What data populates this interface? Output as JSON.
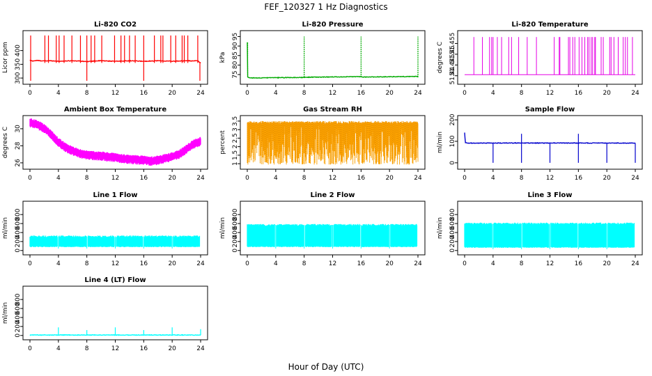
{
  "figure": {
    "title": "FEF_120327  1 Hz Diagnostics",
    "xlabel": "Hour of Day (UTC)"
  },
  "chart_data": [
    {
      "type": "line",
      "title": "Li-820 CO2",
      "ylabel": "Licor ppm",
      "color": "#ff0000",
      "xlim": [
        0,
        24
      ],
      "ylim": [
        285,
        465
      ],
      "yticks": [
        300,
        350,
        400
      ],
      "x": [
        0,
        0.3,
        1,
        2,
        3,
        4,
        5,
        6,
        7,
        8,
        9,
        10,
        11,
        12,
        13,
        14,
        15,
        16,
        17,
        18,
        19,
        20,
        21,
        22,
        23,
        23.5,
        24
      ],
      "y": [
        365,
        362,
        364,
        362,
        363,
        361,
        362,
        363,
        362,
        360,
        362,
        363,
        362,
        361,
        362,
        363,
        362,
        361,
        362,
        363,
        362,
        361,
        362,
        363,
        362,
        364,
        355
      ],
      "spikes_up": [
        0.1,
        2.1,
        2.6,
        3.7,
        4.1,
        4.8,
        5.9,
        7.1,
        8.0,
        8.6,
        9.1,
        10.1,
        11.9,
        12.8,
        13.3,
        14.0,
        14.8,
        16.0,
        17.5,
        18.4,
        18.7,
        19.8,
        20.5,
        21.4,
        21.7,
        22.2,
        23.6
      ],
      "spike_up_to": 455,
      "spikes_down": [
        0.1,
        8.0,
        16.0,
        23.9
      ],
      "spike_down_to": 290
    },
    {
      "type": "line",
      "title": "Li-820 Pressure",
      "ylabel": "kPa",
      "color": "#00aa00",
      "xlim": [
        0,
        24
      ],
      "ylim": [
        71,
        97
      ],
      "yticks": [
        75,
        80,
        85,
        90,
        95
      ],
      "x": [
        0,
        0.05,
        0.15,
        0.4,
        8,
        8.1,
        16,
        16.1,
        24
      ],
      "y": [
        92,
        74,
        73.5,
        73.2,
        73.5,
        73.6,
        73.9,
        73.7,
        74
      ],
      "spikes_up": [
        8,
        16,
        24
      ],
      "spike_up_to": 95
    },
    {
      "type": "line",
      "title": "Li-820 Temperature",
      "ylabel": "degrees C",
      "color": "#e600e6",
      "xlim": [
        0,
        24
      ],
      "ylim": [
        51.437,
        51.46
      ],
      "yticks": [
        51.44,
        51.445,
        51.45,
        51.455
      ],
      "base": 51.4405,
      "spike_up_to": 51.458,
      "spikes_up": [
        1.3,
        2.5,
        3.5,
        3.8,
        4.0,
        4.6,
        5.2,
        6.2,
        6.6,
        7.6,
        8.8,
        10.1,
        12.6,
        13.3,
        13.4,
        14.6,
        14.8,
        15.2,
        15.5,
        16.1,
        16.5,
        16.9,
        17.3,
        17.5,
        17.8,
        18.0,
        18.3,
        18.4,
        19.2,
        19.5,
        20.4,
        20.6,
        21.0,
        21.6,
        22.3,
        22.6,
        22.9,
        23.6
      ]
    },
    {
      "type": "area",
      "title": "Ambient Box Temperature",
      "ylabel": "degrees C",
      "color": "#ff00ff",
      "xlim": [
        0,
        24
      ],
      "ylim": [
        25.5,
        31.3
      ],
      "yticks": [
        26,
        28,
        30
      ],
      "x": [
        0,
        1,
        2,
        3,
        4,
        5,
        6,
        7,
        8,
        10,
        12,
        14,
        16,
        17,
        18,
        19,
        20,
        21,
        22,
        23,
        24
      ],
      "y": [
        30.7,
        30.5,
        30.0,
        29.3,
        28.4,
        27.8,
        27.4,
        27.1,
        26.9,
        26.8,
        26.6,
        26.4,
        26.3,
        26.2,
        26.3,
        26.5,
        26.7,
        27.0,
        27.6,
        28.2,
        28.5
      ]
    },
    {
      "type": "area",
      "title": "Gas Stream RH",
      "ylabel": "percent",
      "color": "#ffa500",
      "xlim": [
        0,
        24
      ],
      "ylim": [
        0.8,
        3.7
      ],
      "yticks": [
        1.0,
        1.5,
        2.0,
        2.5,
        3.0,
        3.5
      ],
      "upper": 3.5,
      "lower_min": 0.95,
      "lower_max": 3.3
    },
    {
      "type": "line",
      "title": "Sample Flow",
      "ylabel": "ml/min",
      "color": "#0000cd",
      "xlim": [
        0,
        24
      ],
      "ylim": [
        -20,
        210
      ],
      "yticks": [
        0,
        100,
        200
      ],
      "x": [
        0,
        0.1,
        0.5,
        24
      ],
      "y": [
        140,
        95,
        92,
        92
      ],
      "spikes_up": [
        8,
        16
      ],
      "spike_up_to": 135,
      "spikes_down": [
        4,
        8,
        12,
        16,
        20,
        24
      ],
      "spike_down_to": 0
    },
    {
      "type": "area",
      "title": "Line 1 Flow",
      "ylabel": "ml/min",
      "color": "#00ffff",
      "xlim": [
        0,
        24
      ],
      "ylim": [
        -50,
        1050
      ],
      "yticks": [
        0,
        200,
        400,
        600,
        800
      ],
      "upper": 315,
      "lower": 75,
      "gaps": [
        4,
        8,
        12,
        16,
        20,
        24
      ]
    },
    {
      "type": "area",
      "title": "Line 2 Flow",
      "ylabel": "ml/min",
      "color": "#00ffff",
      "xlim": [
        0,
        24
      ],
      "ylim": [
        -50,
        1050
      ],
      "yticks": [
        0,
        200,
        400,
        600,
        800
      ],
      "upper": 570,
      "lower": 75,
      "gaps": [
        4,
        8,
        12,
        16,
        20,
        24
      ]
    },
    {
      "type": "area",
      "title": "Line 3 Flow",
      "ylabel": "ml/min",
      "color": "#00ffff",
      "xlim": [
        0,
        24
      ],
      "ylim": [
        -50,
        1050
      ],
      "yticks": [
        0,
        200,
        400,
        600,
        800
      ],
      "upper": 600,
      "lower": 60,
      "gaps": [
        4,
        8,
        12,
        16,
        20,
        24
      ]
    },
    {
      "type": "line",
      "title": "Line 4 (LT) Flow",
      "ylabel": "ml/min",
      "color": "#00ffff",
      "xlim": [
        0,
        24
      ],
      "ylim": [
        -50,
        1050
      ],
      "yticks": [
        0,
        200,
        400,
        600,
        800
      ],
      "x": [
        0,
        24
      ],
      "y": [
        10,
        10
      ],
      "spikes_up": [
        4,
        8,
        12,
        16,
        20,
        24
      ],
      "spike_heights": [
        180,
        120,
        180,
        120,
        180,
        140
      ]
    }
  ]
}
